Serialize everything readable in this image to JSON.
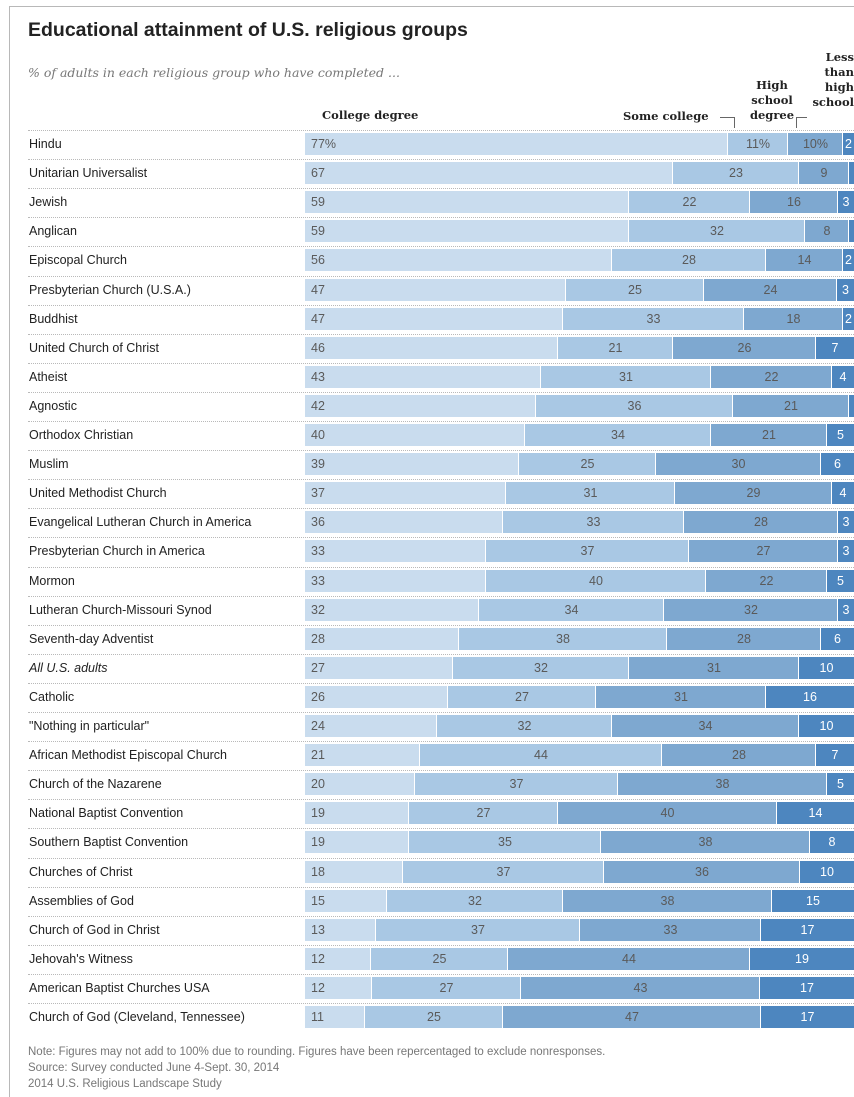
{
  "chart_data": {
    "type": "bar",
    "orientation": "horizontal",
    "stacked": true,
    "title": "Educational attainment of U.S. religious groups",
    "subtitle": "% of adults in each religious group who have completed ...",
    "xlim": [
      0,
      100
    ],
    "series": [
      {
        "name": "College degree",
        "color": "#c9dcee"
      },
      {
        "name": "Some college",
        "color": "#a9c8e4"
      },
      {
        "name": "High school degree",
        "color": "#7ea8d0"
      },
      {
        "name": "Less than high school",
        "color": "#4d86bf"
      }
    ],
    "headers": {
      "college": "College degree",
      "some_college": "Some college",
      "high_school_line1": "High",
      "high_school_line2": "school",
      "high_school_line3": "degree",
      "less_line1": "Less",
      "less_line2": "than",
      "less_line3": "high",
      "less_line4": "school"
    },
    "rows": [
      {
        "label": "Hindu",
        "values": [
          77,
          11,
          10,
          2
        ],
        "labels": [
          "77%",
          "11%",
          "10%",
          "2"
        ]
      },
      {
        "label": "Unitarian Universalist",
        "values": [
          67,
          23,
          9,
          1
        ],
        "labels": [
          "67",
          "23",
          "9",
          ""
        ]
      },
      {
        "label": "Jewish",
        "values": [
          59,
          22,
          16,
          3
        ],
        "labels": [
          "59",
          "22",
          "16",
          "3"
        ]
      },
      {
        "label": "Anglican",
        "values": [
          59,
          32,
          8,
          1
        ],
        "labels": [
          "59",
          "32",
          "8",
          ""
        ]
      },
      {
        "label": "Episcopal Church",
        "values": [
          56,
          28,
          14,
          2
        ],
        "labels": [
          "56",
          "28",
          "14",
          "2"
        ]
      },
      {
        "label": "Presbyterian Church (U.S.A.)",
        "values": [
          47,
          25,
          24,
          3
        ],
        "labels": [
          "47",
          "25",
          "24",
          "3"
        ]
      },
      {
        "label": "Buddhist",
        "values": [
          47,
          33,
          18,
          2
        ],
        "labels": [
          "47",
          "33",
          "18",
          "2"
        ]
      },
      {
        "label": "United Church of Christ",
        "values": [
          46,
          21,
          26,
          7
        ],
        "labels": [
          "46",
          "21",
          "26",
          "7"
        ]
      },
      {
        "label": "Atheist",
        "values": [
          43,
          31,
          22,
          4
        ],
        "labels": [
          "43",
          "31",
          "22",
          "4"
        ]
      },
      {
        "label": "Agnostic",
        "values": [
          42,
          36,
          21,
          1
        ],
        "labels": [
          "42",
          "36",
          "21",
          ""
        ]
      },
      {
        "label": "Orthodox Christian",
        "values": [
          40,
          34,
          21,
          5
        ],
        "labels": [
          "40",
          "34",
          "21",
          "5"
        ]
      },
      {
        "label": "Muslim",
        "values": [
          39,
          25,
          30,
          6
        ],
        "labels": [
          "39",
          "25",
          "30",
          "6"
        ]
      },
      {
        "label": "United Methodist Church",
        "values": [
          37,
          31,
          29,
          4
        ],
        "labels": [
          "37",
          "31",
          "29",
          "4"
        ]
      },
      {
        "label": "Evangelical Lutheran Church in America",
        "values": [
          36,
          33,
          28,
          3
        ],
        "labels": [
          "36",
          "33",
          "28",
          "3"
        ]
      },
      {
        "label": "Presbyterian Church in America",
        "values": [
          33,
          37,
          27,
          3
        ],
        "labels": [
          "33",
          "37",
          "27",
          "3"
        ]
      },
      {
        "label": "Mormon",
        "values": [
          33,
          40,
          22,
          5
        ],
        "labels": [
          "33",
          "40",
          "22",
          "5"
        ]
      },
      {
        "label": "Lutheran Church-Missouri Synod",
        "values": [
          32,
          34,
          32,
          3
        ],
        "labels": [
          "32",
          "34",
          "32",
          "3"
        ]
      },
      {
        "label": "Seventh-day Adventist",
        "values": [
          28,
          38,
          28,
          6
        ],
        "labels": [
          "28",
          "38",
          "28",
          "6"
        ]
      },
      {
        "label": "All U.S. adults",
        "values": [
          27,
          32,
          31,
          10
        ],
        "labels": [
          "27",
          "32",
          "31",
          "10"
        ],
        "italic": true
      },
      {
        "label": "Catholic",
        "values": [
          26,
          27,
          31,
          16
        ],
        "labels": [
          "26",
          "27",
          "31",
          "16"
        ]
      },
      {
        "label": "\"Nothing in particular\"",
        "values": [
          24,
          32,
          34,
          10
        ],
        "labels": [
          "24",
          "32",
          "34",
          "10"
        ]
      },
      {
        "label": "African Methodist Episcopal Church",
        "values": [
          21,
          44,
          28,
          7
        ],
        "labels": [
          "21",
          "44",
          "28",
          "7"
        ]
      },
      {
        "label": "Church of the Nazarene",
        "values": [
          20,
          37,
          38,
          5
        ],
        "labels": [
          "20",
          "37",
          "38",
          "5"
        ]
      },
      {
        "label": "National Baptist Convention",
        "values": [
          19,
          27,
          40,
          14
        ],
        "labels": [
          "19",
          "27",
          "40",
          "14"
        ]
      },
      {
        "label": "Southern Baptist Convention",
        "values": [
          19,
          35,
          38,
          8
        ],
        "labels": [
          "19",
          "35",
          "38",
          "8"
        ]
      },
      {
        "label": "Churches of Christ",
        "values": [
          18,
          37,
          36,
          10
        ],
        "labels": [
          "18",
          "37",
          "36",
          "10"
        ]
      },
      {
        "label": "Assemblies of God",
        "values": [
          15,
          32,
          38,
          15
        ],
        "labels": [
          "15",
          "32",
          "38",
          "15"
        ]
      },
      {
        "label": "Church of God in Christ",
        "values": [
          13,
          37,
          33,
          17
        ],
        "labels": [
          "13",
          "37",
          "33",
          "17"
        ]
      },
      {
        "label": "Jehovah's Witness",
        "values": [
          12,
          25,
          44,
          19
        ],
        "labels": [
          "12",
          "25",
          "44",
          "19"
        ]
      },
      {
        "label": "American Baptist Churches USA",
        "values": [
          12,
          27,
          43,
          17
        ],
        "labels": [
          "12",
          "27",
          "43",
          "17"
        ]
      },
      {
        "label": "Church of God (Cleveland, Tennessee)",
        "values": [
          11,
          25,
          47,
          17
        ],
        "labels": [
          "11",
          "25",
          "47",
          "17"
        ]
      }
    ]
  },
  "notes": [
    "Note: Figures may not add to 100% due to rounding. Figures have been repercentaged to exclude nonresponses.",
    "Source: Survey conducted June 4-Sept. 30, 2014",
    "2014 U.S. Religious Landscape Study"
  ]
}
